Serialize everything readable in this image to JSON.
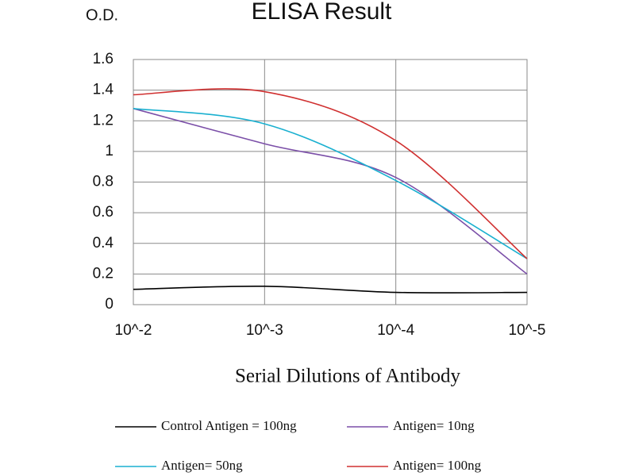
{
  "chart_data": {
    "type": "line",
    "title": "ELISA Result",
    "y_label": "O.D.",
    "x_label": "Serial Dilutions of Antibody",
    "categories": [
      "10^-2",
      "10^-3",
      "10^-4",
      "10^-5"
    ],
    "series": [
      {
        "name": "Control Antigen = 100ng",
        "color": "#000000",
        "values": [
          0.1,
          0.12,
          0.08,
          0.08
        ]
      },
      {
        "name": "Antigen= 10ng",
        "color": "#7b4fa8",
        "values": [
          1.28,
          1.05,
          0.83,
          0.2
        ]
      },
      {
        "name": "Antigen= 50ng",
        "color": "#1ab0d0",
        "values": [
          1.28,
          1.18,
          0.81,
          0.3
        ]
      },
      {
        "name": "Antigen= 100ng",
        "color": "#d03030",
        "values": [
          1.37,
          1.39,
          1.07,
          0.3
        ]
      }
    ],
    "ylim": [
      0,
      1.6
    ],
    "yticks": [
      0,
      0.2,
      0.4,
      0.6,
      0.8,
      1,
      1.2,
      1.4,
      1.6
    ],
    "grid": true
  }
}
